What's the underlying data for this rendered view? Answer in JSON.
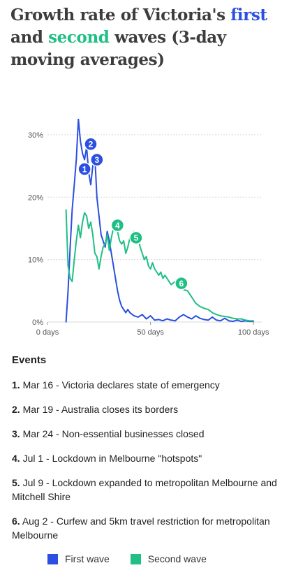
{
  "title": {
    "part1": "Growth rate of Victoria's ",
    "first": "first",
    "part2": " and ",
    "second": "second",
    "part3": " waves (3-day moving averages)"
  },
  "colors": {
    "first_wave": "#2b4fe0",
    "second_wave": "#1fbf85",
    "grid": "#d9d9d9",
    "text": "#555555"
  },
  "chart_data": {
    "type": "line",
    "title": "Growth rate of Victoria's first and second waves (3-day moving averages)",
    "xlabel": "",
    "ylabel": "",
    "xlim": [
      0,
      104
    ],
    "ylim": [
      0,
      32
    ],
    "x_ticks": [
      0,
      50,
      100
    ],
    "x_tick_labels": [
      "0 days",
      "50 days",
      "100 days"
    ],
    "y_ticks": [
      0,
      10,
      20,
      30
    ],
    "y_tick_labels": [
      "0%",
      "10%",
      "20%",
      "30%"
    ],
    "grid": true,
    "legend_position": "bottom",
    "series": [
      {
        "name": "First wave",
        "color": "#2b4fe0",
        "x": [
          9,
          10,
          11,
          12,
          13,
          14,
          15,
          16,
          17,
          18,
          19,
          20,
          21,
          22,
          23,
          24,
          25,
          26,
          27,
          28,
          29,
          30,
          31,
          32,
          33,
          34,
          35,
          36,
          37,
          38,
          39,
          40,
          42,
          44,
          46,
          48,
          50,
          52,
          54,
          56,
          58,
          60,
          62,
          64,
          66,
          68,
          70,
          72,
          74,
          76,
          78,
          80,
          82,
          84,
          86,
          88,
          90,
          92,
          94,
          96,
          98,
          100
        ],
        "y": [
          0,
          5,
          12,
          18,
          22,
          26,
          32.5,
          29,
          27,
          26,
          28,
          24,
          22,
          25,
          26.5,
          20,
          17,
          14,
          13,
          12,
          14.5,
          13,
          11,
          9,
          7,
          5,
          3.5,
          2.5,
          2,
          1.5,
          2,
          1.5,
          1,
          0.8,
          1.2,
          0.5,
          1,
          0.3,
          0.4,
          0.2,
          0.5,
          0.3,
          0.2,
          0.8,
          1.2,
          0.8,
          0.5,
          1,
          0.6,
          0.4,
          0.3,
          0.8,
          0.3,
          0.2,
          0.6,
          0.2,
          0.1,
          0.3,
          0.1,
          0.2,
          0.1,
          0.1
        ]
      },
      {
        "name": "Second wave",
        "color": "#1fbf85",
        "x": [
          9,
          10,
          11,
          12,
          13,
          14,
          15,
          16,
          17,
          18,
          19,
          20,
          21,
          22,
          23,
          24,
          25,
          26,
          27,
          28,
          29,
          30,
          31,
          32,
          33,
          34,
          35,
          36,
          37,
          38,
          39,
          40,
          41,
          42,
          43,
          44,
          45,
          46,
          47,
          48,
          49,
          50,
          51,
          52,
          53,
          54,
          55,
          56,
          57,
          58,
          60,
          62,
          64,
          66,
          68,
          70,
          72,
          74,
          76,
          78,
          80,
          82,
          84,
          86,
          88,
          90,
          92,
          94,
          96,
          98,
          100
        ],
        "y": [
          18,
          9,
          7,
          6.5,
          10,
          13,
          15.5,
          13.5,
          16,
          17.5,
          17,
          15,
          16,
          14,
          11,
          10.5,
          8.5,
          10.5,
          12,
          12.5,
          14,
          11.5,
          13.5,
          15,
          15.5,
          14.5,
          13,
          12.5,
          13,
          11,
          12,
          13.5,
          14,
          14.5,
          12.5,
          13.5,
          12,
          11,
          10,
          10.5,
          9,
          8.5,
          9.5,
          8.5,
          8,
          7.5,
          8,
          7,
          7.5,
          7,
          6,
          6.5,
          5.5,
          5.2,
          5,
          4,
          3,
          2.5,
          2.2,
          2,
          1.5,
          1.2,
          1,
          0.9,
          0.8,
          0.6,
          0.5,
          0.5,
          0.3,
          0.2,
          0.2
        ]
      }
    ],
    "markers": [
      {
        "label": "1",
        "series": "First wave",
        "x": 18,
        "y": 24.5
      },
      {
        "label": "2",
        "series": "First wave",
        "x": 21,
        "y": 28.5
      },
      {
        "label": "3",
        "series": "First wave",
        "x": 24,
        "y": 26
      },
      {
        "label": "4",
        "series": "Second wave",
        "x": 34,
        "y": 15.5
      },
      {
        "label": "5",
        "series": "Second wave",
        "x": 43,
        "y": 13.5
      },
      {
        "label": "6",
        "series": "Second wave",
        "x": 65,
        "y": 6.2
      }
    ]
  },
  "events": {
    "heading": "Events",
    "items": [
      {
        "num": "1.",
        "date": "Mar 16",
        "text": " - Victoria declares state of emergency"
      },
      {
        "num": "2.",
        "date": "Mar 19",
        "text": " - Australia closes its borders"
      },
      {
        "num": "3.",
        "date": "Mar 24",
        "text": " - Non-essential businesses closed"
      },
      {
        "num": "4.",
        "date": "Jul 1",
        "text": " - Lockdown in Melbourne \"hotspots\""
      },
      {
        "num": "5.",
        "date": "Jul 9",
        "text": " - Lockdown expanded to metropolitan Melbourne and Mitchell Shire"
      },
      {
        "num": "6.",
        "date": "Aug 2",
        "text": " - Curfew and 5km travel restriction for metropolitan Melbourne"
      }
    ]
  },
  "legend": {
    "first": "First wave",
    "second": "Second wave"
  }
}
